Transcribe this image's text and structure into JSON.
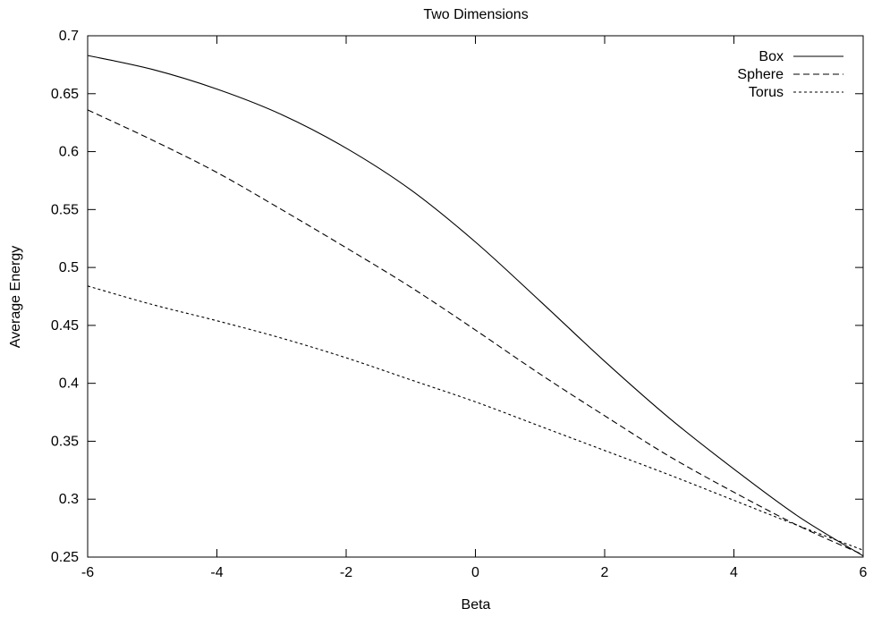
{
  "chart_data": {
    "type": "line",
    "title": "Two Dimensions",
    "xlabel": "Beta",
    "ylabel": "Average Energy",
    "xlim": [
      -6,
      6
    ],
    "ylim": [
      0.25,
      0.7
    ],
    "xticks": [
      "-6",
      "-4",
      "-2",
      "0",
      "2",
      "4",
      "6"
    ],
    "yticks": [
      "0.25",
      "0.3",
      "0.35",
      "0.4",
      "0.45",
      "0.5",
      "0.55",
      "0.6",
      "0.65",
      "0.7"
    ],
    "grid": false,
    "legend_position": "top-right",
    "x": [
      -6,
      -5,
      -4,
      -3,
      -2,
      -1,
      0,
      1,
      2,
      3,
      4,
      5,
      6
    ],
    "series": [
      {
        "name": "Box",
        "dash": "solid",
        "values": [
          0.683,
          0.671,
          0.654,
          0.632,
          0.603,
          0.567,
          0.522,
          0.471,
          0.419,
          0.37,
          0.326,
          0.285,
          0.251
        ]
      },
      {
        "name": "Sphere",
        "dash": "dashed",
        "values": [
          0.636,
          0.61,
          0.582,
          0.55,
          0.517,
          0.483,
          0.446,
          0.408,
          0.372,
          0.337,
          0.306,
          0.277,
          0.252
        ]
      },
      {
        "name": "Torus",
        "dash": "dotted",
        "values": [
          0.484,
          0.468,
          0.454,
          0.439,
          0.422,
          0.403,
          0.384,
          0.363,
          0.342,
          0.321,
          0.299,
          0.277,
          0.256
        ]
      }
    ]
  }
}
